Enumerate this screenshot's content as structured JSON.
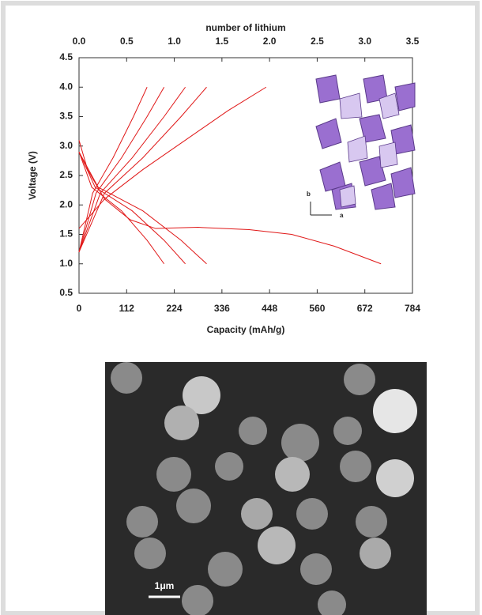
{
  "chart_data": {
    "type": "line",
    "x_label": "Capacity (mAh/g)",
    "x2_label": "number of lithium",
    "y_label": "Voltage (V)",
    "xlim": [
      0,
      784
    ],
    "xticks": [
      0,
      112,
      224,
      336,
      448,
      560,
      672,
      784
    ],
    "x2lim": [
      0,
      3.5
    ],
    "x2ticks": [
      {
        "value": 0,
        "label": "0.0"
      },
      0.5,
      {
        "value": 1,
        "label": "1.0"
      },
      1.5,
      {
        "value": 2,
        "label": "2.0"
      },
      2.5,
      {
        "value": 3,
        "label": "3.0"
      },
      3.5
    ],
    "ylim": [
      0.5,
      4.5
    ],
    "yticks": [
      0.5,
      {
        "value": 1,
        "label": "1.0"
      },
      1.5,
      {
        "value": 2,
        "label": "2.0"
      },
      2.5,
      {
        "value": 3,
        "label": "3.0"
      },
      3.5,
      {
        "value": 4,
        "label": "4.0"
      },
      4.5
    ],
    "grid": false,
    "series": [
      {
        "color": "#e01818",
        "x": [
          0,
          20,
          60,
          120,
          180,
          280,
          400,
          500,
          600,
          710
        ],
        "values": [
          3.1,
          2.6,
          2.1,
          1.75,
          1.6,
          1.62,
          1.58,
          1.5,
          1.3,
          1.0
        ]
      },
      {
        "color": "#e01818",
        "x": [
          0,
          60,
          150,
          250,
          350,
          440
        ],
        "values": [
          1.6,
          2.1,
          2.6,
          3.1,
          3.6,
          4.0
        ]
      },
      {
        "color": "#e01818",
        "x": [
          0,
          60,
          150,
          240,
          300
        ],
        "values": [
          1.2,
          2.2,
          2.8,
          3.5,
          4.0
        ]
      },
      {
        "color": "#e01818",
        "x": [
          0,
          50,
          125,
          200,
          250
        ],
        "values": [
          1.2,
          2.2,
          2.8,
          3.5,
          4.0
        ]
      },
      {
        "color": "#e01818",
        "x": [
          0,
          40,
          100,
          160,
          200
        ],
        "values": [
          1.2,
          2.2,
          2.8,
          3.5,
          4.0
        ]
      },
      {
        "color": "#e01818",
        "x": [
          0,
          32,
          80,
          128,
          160
        ],
        "values": [
          1.2,
          2.2,
          2.8,
          3.5,
          4.0
        ]
      },
      {
        "color": "#e01818",
        "x": [
          0,
          45,
          150,
          240,
          300
        ],
        "values": [
          2.9,
          2.3,
          1.9,
          1.4,
          1.0
        ]
      },
      {
        "color": "#e01818",
        "x": [
          0,
          38,
          125,
          200,
          250
        ],
        "values": [
          2.9,
          2.3,
          1.9,
          1.4,
          1.0
        ]
      },
      {
        "color": "#e01818",
        "x": [
          0,
          30,
          100,
          160,
          200
        ],
        "values": [
          2.9,
          2.3,
          1.9,
          1.4,
          1.0
        ]
      }
    ]
  },
  "inset": {
    "axis_b": "b",
    "axis_a": "a"
  },
  "image": {
    "scale_label": "1μm"
  }
}
